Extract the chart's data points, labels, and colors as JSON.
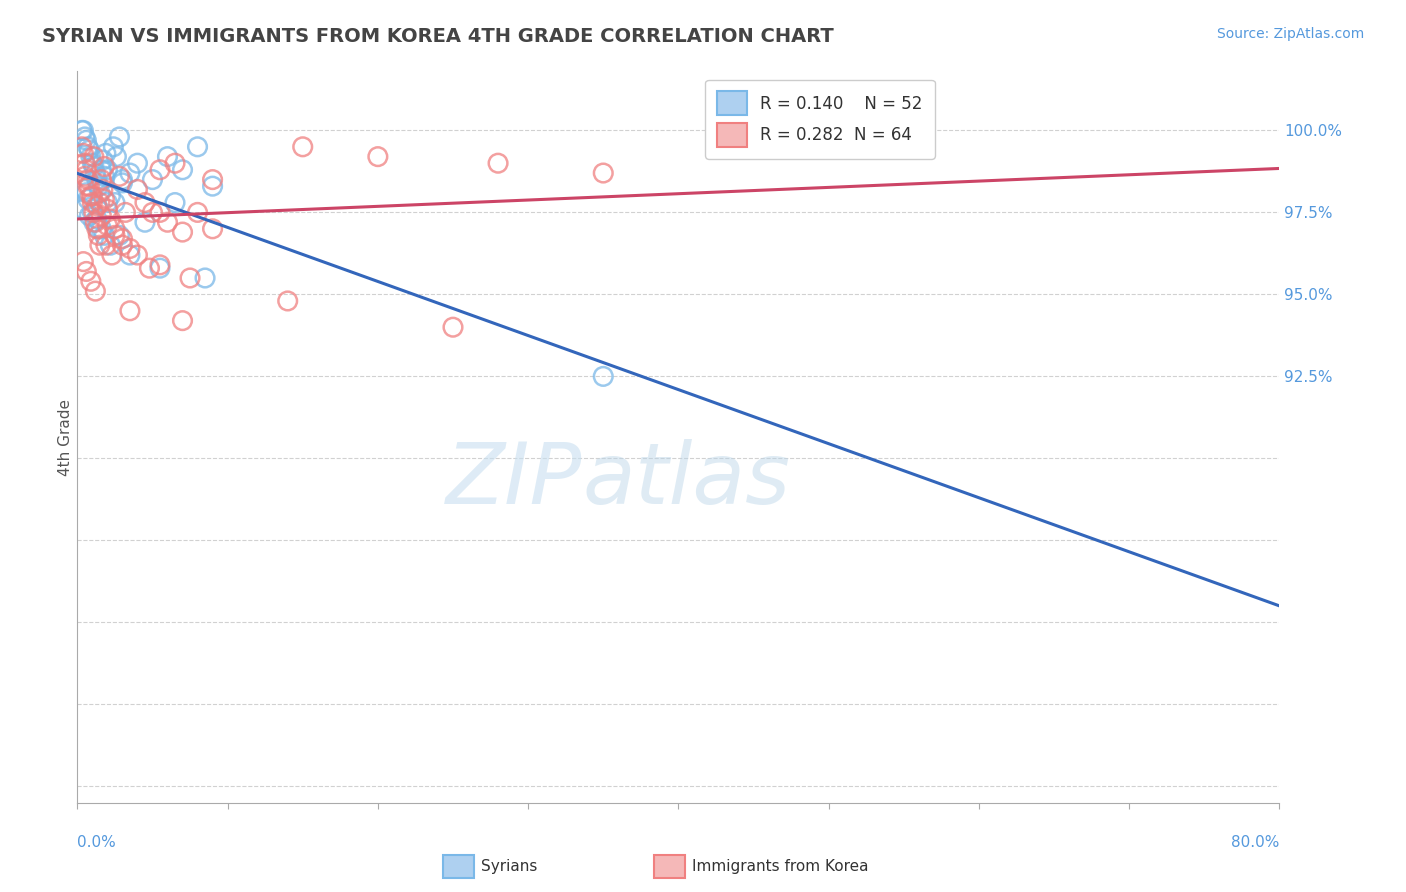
{
  "title": "SYRIAN VS IMMIGRANTS FROM KOREA 4TH GRADE CORRELATION CHART",
  "source_text": "Source: ZipAtlas.com",
  "ylabel": "4th Grade",
  "y_ticks": [
    80.0,
    82.5,
    85.0,
    87.5,
    90.0,
    92.5,
    95.0,
    97.5,
    100.0
  ],
  "xlim": [
    0.0,
    80.0
  ],
  "ylim": [
    79.5,
    101.8
  ],
  "legend_r1": "R = 0.140",
  "legend_n1": "N = 52",
  "legend_r2": "R = 0.282",
  "legend_n2": "N = 64",
  "color_blue": "#7ab8e8",
  "color_pink": "#f08080",
  "color_blue_line": "#3366bb",
  "color_pink_line": "#cc4466",
  "watermark_zip": "ZIP",
  "watermark_atlas": "atlas",
  "syrians_x": [
    0.3,
    0.4,
    0.5,
    0.6,
    0.7,
    0.8,
    0.9,
    1.0,
    1.1,
    1.2,
    1.3,
    1.4,
    1.5,
    1.6,
    1.7,
    1.8,
    1.9,
    2.0,
    2.2,
    2.4,
    2.6,
    2.8,
    3.0,
    3.5,
    4.0,
    5.0,
    6.0,
    7.0,
    8.0,
    9.0,
    0.5,
    0.7,
    1.0,
    1.3,
    1.6,
    2.0,
    2.5,
    3.0,
    4.5,
    6.5,
    0.4,
    0.6,
    0.8,
    1.1,
    1.4,
    1.8,
    2.2,
    3.5,
    5.5,
    8.5,
    2.8,
    35.0
  ],
  "syrians_y": [
    100.0,
    100.0,
    99.8,
    99.7,
    99.5,
    99.4,
    99.2,
    99.0,
    98.9,
    98.7,
    98.5,
    98.3,
    98.1,
    98.8,
    99.1,
    98.6,
    99.3,
    97.8,
    98.0,
    99.5,
    99.2,
    99.8,
    98.4,
    98.7,
    99.0,
    98.5,
    99.2,
    98.8,
    99.5,
    98.3,
    98.2,
    97.9,
    97.5,
    97.3,
    97.0,
    98.8,
    97.8,
    98.5,
    97.2,
    97.8,
    97.6,
    98.1,
    97.4,
    97.2,
    97.0,
    96.8,
    96.5,
    96.2,
    95.8,
    95.5,
    96.8,
    92.5
  ],
  "korea_x": [
    0.3,
    0.4,
    0.5,
    0.6,
    0.7,
    0.8,
    0.9,
    1.0,
    1.1,
    1.2,
    1.3,
    1.4,
    1.5,
    1.6,
    1.7,
    1.8,
    2.0,
    2.2,
    2.5,
    3.0,
    3.5,
    4.0,
    4.5,
    5.0,
    5.5,
    6.0,
    6.5,
    7.0,
    8.0,
    9.0,
    0.5,
    0.7,
    1.0,
    1.3,
    1.6,
    2.0,
    2.5,
    3.0,
    4.0,
    5.5,
    0.4,
    0.6,
    0.9,
    1.2,
    1.5,
    1.9,
    2.3,
    3.2,
    4.8,
    7.5,
    1.1,
    1.8,
    2.8,
    5.5,
    9.0,
    15.0,
    20.0,
    28.0,
    35.0,
    45.0,
    3.5,
    7.0,
    14.0,
    25.0
  ],
  "korea_y": [
    99.5,
    99.3,
    99.0,
    98.8,
    98.5,
    98.3,
    98.0,
    97.8,
    97.5,
    97.2,
    97.0,
    96.8,
    96.5,
    98.5,
    98.2,
    97.9,
    97.6,
    97.3,
    97.0,
    96.7,
    96.4,
    98.2,
    97.8,
    97.5,
    98.8,
    97.2,
    99.0,
    96.9,
    97.5,
    98.5,
    98.6,
    98.3,
    98.0,
    97.7,
    97.4,
    97.1,
    96.8,
    96.5,
    96.2,
    95.9,
    96.0,
    95.7,
    95.4,
    95.1,
    97.8,
    96.5,
    96.2,
    97.5,
    95.8,
    95.5,
    99.2,
    98.9,
    98.6,
    97.5,
    97.0,
    99.5,
    99.2,
    99.0,
    98.7,
    99.5,
    94.5,
    94.2,
    94.8,
    94.0
  ]
}
